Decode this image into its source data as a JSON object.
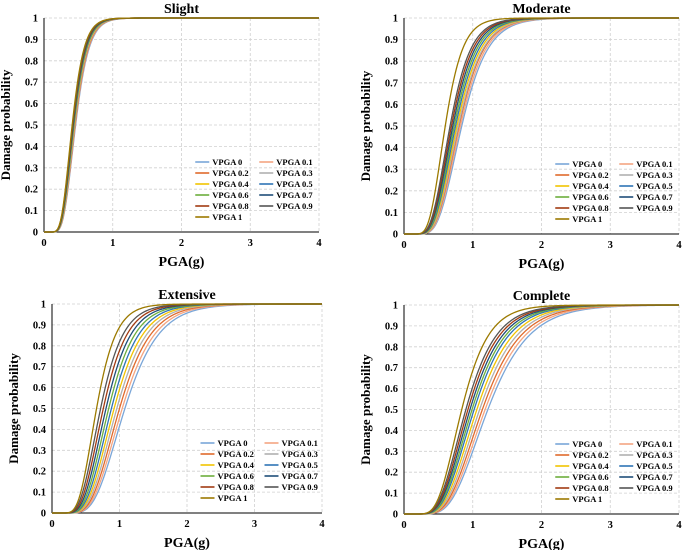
{
  "series_colors": {
    "VPGA 0": "#7aa6d8",
    "VPGA 0.1": "#f4a582",
    "VPGA 0.2": "#e06a2c",
    "VPGA 0.3": "#b0b0b0",
    "VPGA 0.4": "#f2c400",
    "VPGA 0.5": "#2e75b6",
    "VPGA 0.6": "#6cae3c",
    "VPGA 0.7": "#1f4e79",
    "VPGA 0.8": "#a23b12",
    "VPGA 0.9": "#555555",
    "VPGA 1": "#9c7a00"
  },
  "chart_data": [
    {
      "type": "line",
      "title": "Slight",
      "xlabel": "PGA(g)",
      "ylabel": "Damage probability",
      "xlim": [
        0,
        4
      ],
      "ylim": [
        0,
        1
      ],
      "xticks": [
        "0",
        "1",
        "2",
        "3",
        "4"
      ],
      "yticks": [
        "0",
        "0.1",
        "0.2",
        "0.3",
        "0.4",
        "0.5",
        "0.6",
        "0.7",
        "0.8",
        "0.9",
        "1"
      ],
      "legend_position": "bottom-right",
      "series": [
        {
          "name": "VPGA 0",
          "median": 0.46,
          "beta": 0.33
        },
        {
          "name": "VPGA 0.1",
          "median": 0.455,
          "beta": 0.33
        },
        {
          "name": "VPGA 0.2",
          "median": 0.45,
          "beta": 0.33
        },
        {
          "name": "VPGA 0.3",
          "median": 0.445,
          "beta": 0.33
        },
        {
          "name": "VPGA 0.4",
          "median": 0.44,
          "beta": 0.33
        },
        {
          "name": "VPGA 0.5",
          "median": 0.435,
          "beta": 0.33
        },
        {
          "name": "VPGA 0.6",
          "median": 0.43,
          "beta": 0.33
        },
        {
          "name": "VPGA 0.7",
          "median": 0.425,
          "beta": 0.33
        },
        {
          "name": "VPGA 0.8",
          "median": 0.42,
          "beta": 0.33
        },
        {
          "name": "VPGA 0.9",
          "median": 0.415,
          "beta": 0.33
        },
        {
          "name": "VPGA 1",
          "median": 0.41,
          "beta": 0.33
        }
      ]
    },
    {
      "type": "line",
      "title": "Moderate",
      "xlabel": "PGA(g)",
      "ylabel": "Damage probability",
      "xlim": [
        0,
        4
      ],
      "ylim": [
        0,
        1
      ],
      "xticks": [
        "0",
        "1",
        "2",
        "3",
        "4"
      ],
      "yticks": [
        "0",
        "0.1",
        "0.2",
        "0.3",
        "0.4",
        "0.5",
        "0.6",
        "0.7",
        "0.8",
        "0.9",
        "1"
      ],
      "legend_position": "bottom-right",
      "series": [
        {
          "name": "VPGA 0",
          "median": 0.84,
          "beta": 0.35
        },
        {
          "name": "VPGA 0.1",
          "median": 0.82,
          "beta": 0.35
        },
        {
          "name": "VPGA 0.2",
          "median": 0.8,
          "beta": 0.35
        },
        {
          "name": "VPGA 0.3",
          "median": 0.79,
          "beta": 0.35
        },
        {
          "name": "VPGA 0.4",
          "median": 0.77,
          "beta": 0.35
        },
        {
          "name": "VPGA 0.5",
          "median": 0.75,
          "beta": 0.35
        },
        {
          "name": "VPGA 0.6",
          "median": 0.73,
          "beta": 0.35
        },
        {
          "name": "VPGA 0.7",
          "median": 0.71,
          "beta": 0.35
        },
        {
          "name": "VPGA 0.8",
          "median": 0.69,
          "beta": 0.35
        },
        {
          "name": "VPGA 0.9",
          "median": 0.67,
          "beta": 0.35
        },
        {
          "name": "VPGA 1",
          "median": 0.6,
          "beta": 0.33
        }
      ]
    },
    {
      "type": "line",
      "title": "Extensive",
      "xlabel": "PGA(g)",
      "ylabel": "Damage probability",
      "xlim": [
        0,
        4
      ],
      "ylim": [
        0,
        1
      ],
      "xticks": [
        "0",
        "1",
        "2",
        "3",
        "4"
      ],
      "yticks": [
        "0",
        "0.1",
        "0.2",
        "0.3",
        "0.4",
        "0.5",
        "0.6",
        "0.7",
        "0.8",
        "0.9",
        "1"
      ],
      "legend_position": "bottom-right",
      "series": [
        {
          "name": "VPGA 0",
          "median": 1.08,
          "beta": 0.36
        },
        {
          "name": "VPGA 0.1",
          "median": 1.04,
          "beta": 0.36
        },
        {
          "name": "VPGA 0.2",
          "median": 1.0,
          "beta": 0.36
        },
        {
          "name": "VPGA 0.3",
          "median": 0.96,
          "beta": 0.36
        },
        {
          "name": "VPGA 0.4",
          "median": 0.92,
          "beta": 0.36
        },
        {
          "name": "VPGA 0.5",
          "median": 0.88,
          "beta": 0.36
        },
        {
          "name": "VPGA 0.6",
          "median": 0.84,
          "beta": 0.36
        },
        {
          "name": "VPGA 0.7",
          "median": 0.8,
          "beta": 0.36
        },
        {
          "name": "VPGA 0.8",
          "median": 0.76,
          "beta": 0.36
        },
        {
          "name": "VPGA 0.9",
          "median": 0.72,
          "beta": 0.36
        },
        {
          "name": "VPGA 1",
          "median": 0.66,
          "beta": 0.34
        }
      ]
    },
    {
      "type": "line",
      "title": "Complete",
      "xlabel": "PGA(g)",
      "ylabel": "Damage probability",
      "xlim": [
        0,
        4
      ],
      "ylim": [
        0,
        1
      ],
      "xticks": [
        "0",
        "1",
        "2",
        "3",
        "4"
      ],
      "yticks": [
        "0",
        "0.1",
        "0.2",
        "0.3",
        "0.4",
        "0.5",
        "0.6",
        "0.7",
        "0.8",
        "0.9",
        "1"
      ],
      "legend_position": "bottom-right",
      "series": [
        {
          "name": "VPGA 0",
          "median": 1.22,
          "beta": 0.38
        },
        {
          "name": "VPGA 0.1",
          "median": 1.18,
          "beta": 0.38
        },
        {
          "name": "VPGA 0.2",
          "median": 1.14,
          "beta": 0.38
        },
        {
          "name": "VPGA 0.3",
          "median": 1.1,
          "beta": 0.38
        },
        {
          "name": "VPGA 0.4",
          "median": 1.06,
          "beta": 0.38
        },
        {
          "name": "VPGA 0.5",
          "median": 1.02,
          "beta": 0.38
        },
        {
          "name": "VPGA 0.6",
          "median": 0.99,
          "beta": 0.38
        },
        {
          "name": "VPGA 0.7",
          "median": 0.96,
          "beta": 0.38
        },
        {
          "name": "VPGA 0.8",
          "median": 0.93,
          "beta": 0.38
        },
        {
          "name": "VPGA 0.9",
          "median": 0.9,
          "beta": 0.38
        },
        {
          "name": "VPGA 1",
          "median": 0.84,
          "beta": 0.36
        }
      ]
    }
  ]
}
